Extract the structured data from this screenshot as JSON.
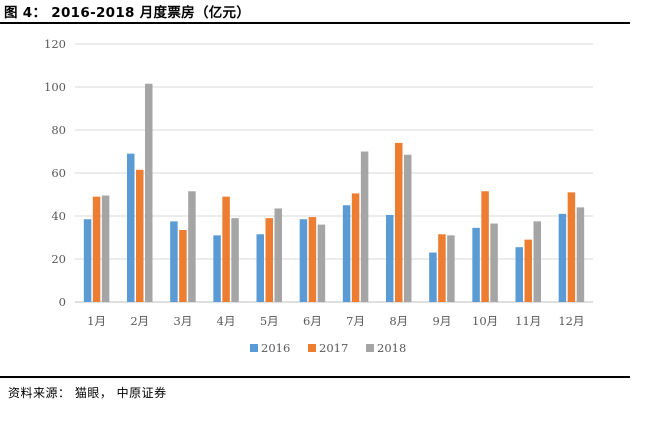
{
  "figure": {
    "title": "图 4： 2016-2018 月度票房（亿元）",
    "source": "资料来源：  猫眼， 中原证券"
  },
  "chart_data": {
    "type": "bar",
    "title": "2016-2018 月度票房（亿元）",
    "xlabel": "",
    "ylabel": "",
    "ylim": [
      0,
      120
    ],
    "yticks": [
      0,
      20,
      40,
      60,
      80,
      100,
      120
    ],
    "grid": true,
    "legend_position": "bottom",
    "categories": [
      "1月",
      "2月",
      "3月",
      "4月",
      "5月",
      "6月",
      "7月",
      "8月",
      "9月",
      "10月",
      "11月",
      "12月"
    ],
    "series": [
      {
        "name": "2016",
        "color": "#5B9BD5",
        "values": [
          38.5,
          69,
          37.5,
          31,
          31.5,
          38.5,
          45,
          40.5,
          23,
          34.5,
          25.5,
          41
        ]
      },
      {
        "name": "2017",
        "color": "#ED7D31",
        "values": [
          49,
          61.5,
          33.5,
          49,
          39,
          39.5,
          50.5,
          74,
          31.5,
          51.5,
          29,
          51
        ]
      },
      {
        "name": "2018",
        "color": "#A5A5A5",
        "values": [
          49.5,
          101.5,
          51.5,
          39,
          43.5,
          36,
          70,
          68.5,
          31,
          36.5,
          37.5,
          44
        ]
      }
    ]
  }
}
